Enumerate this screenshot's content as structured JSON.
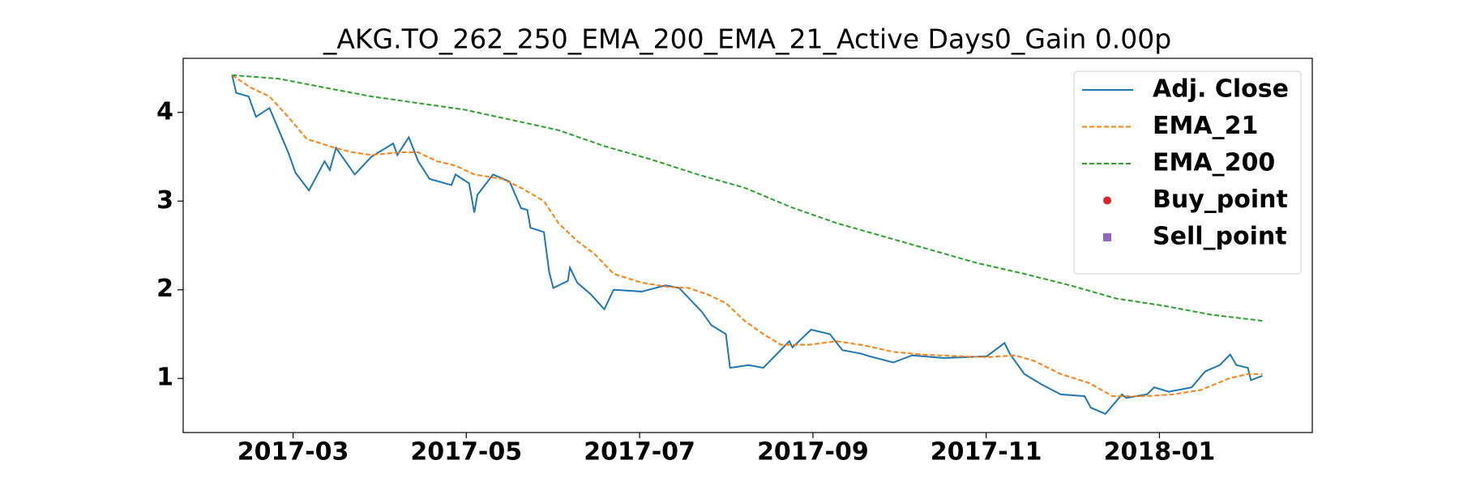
{
  "chart_data": {
    "type": "line",
    "title": "_AKG.TO_262_250_EMA_200_EMA_21_Active Days0_Gain   0.00p",
    "xlim": [
      2017.061,
      2018.147
    ],
    "ylim": [
      0.39,
      4.61
    ],
    "xticks": [
      {
        "value": 2017.1667,
        "label": "2017-03"
      },
      {
        "value": 2017.3333,
        "label": "2017-05"
      },
      {
        "value": 2017.5,
        "label": "2017-07"
      },
      {
        "value": 2017.6667,
        "label": "2017-09"
      },
      {
        "value": 2017.8333,
        "label": "2017-11"
      },
      {
        "value": 2018.0,
        "label": "2018-01"
      }
    ],
    "yticks": [
      1,
      2,
      3,
      4
    ],
    "grid": false,
    "legend": "upper right",
    "series": [
      {
        "name": "Adj. Close",
        "color": "#1f77b4",
        "dash": "solid",
        "x": [
          2017.108,
          2017.112,
          2017.124,
          2017.131,
          2017.144,
          2017.162,
          2017.169,
          2017.182,
          2017.197,
          2017.202,
          2017.208,
          2017.226,
          2017.242,
          2017.263,
          2017.267,
          2017.278,
          2017.287,
          2017.298,
          2017.319,
          2017.323,
          2017.336,
          2017.341,
          2017.344,
          2017.359,
          2017.375,
          2017.386,
          2017.392,
          2017.395,
          2017.408,
          2017.413,
          2017.417,
          2017.431,
          2017.433,
          2017.44,
          2017.453,
          2017.466,
          2017.475,
          2017.502,
          2017.525,
          2017.538,
          2017.56,
          2017.569,
          2017.583,
          2017.587,
          2017.605,
          2017.619,
          2017.644,
          2017.647,
          2017.665,
          2017.683,
          2017.695,
          2017.713,
          2017.721,
          2017.744,
          2017.762,
          2017.793,
          2017.834,
          2017.851,
          2017.856,
          2017.87,
          2017.887,
          2017.905,
          2017.928,
          2017.934,
          2017.948,
          2017.964,
          2017.968,
          2017.988,
          2017.995,
          2018.009,
          2018.031,
          2018.044,
          2018.058,
          2018.068,
          2018.074,
          2018.085,
          2018.088,
          2018.099
        ],
        "values": [
          4.42,
          4.22,
          4.18,
          3.95,
          4.05,
          3.55,
          3.32,
          3.12,
          3.45,
          3.35,
          3.6,
          3.3,
          3.5,
          3.65,
          3.52,
          3.72,
          3.45,
          3.25,
          3.18,
          3.3,
          3.2,
          2.87,
          3.07,
          3.3,
          3.22,
          2.92,
          2.9,
          2.7,
          2.65,
          2.2,
          2.02,
          2.1,
          2.25,
          2.08,
          1.95,
          1.78,
          2.0,
          1.98,
          2.05,
          2.02,
          1.75,
          1.6,
          1.5,
          1.12,
          1.15,
          1.12,
          1.42,
          1.35,
          1.55,
          1.5,
          1.32,
          1.28,
          1.25,
          1.18,
          1.26,
          1.23,
          1.25,
          1.4,
          1.28,
          1.05,
          0.93,
          0.82,
          0.8,
          0.67,
          0.6,
          0.82,
          0.78,
          0.82,
          0.9,
          0.85,
          0.9,
          1.08,
          1.15,
          1.27,
          1.15,
          1.12,
          0.98,
          1.03
        ]
      },
      {
        "name": "EMA_21",
        "color": "#ff7f0e",
        "dash": "dashed",
        "x": [
          2017.108,
          2017.126,
          2017.144,
          2017.162,
          2017.18,
          2017.207,
          2017.224,
          2017.242,
          2017.269,
          2017.287,
          2017.305,
          2017.323,
          2017.341,
          2017.368,
          2017.386,
          2017.408,
          2017.422,
          2017.44,
          2017.457,
          2017.475,
          2017.502,
          2017.529,
          2017.547,
          2017.565,
          2017.583,
          2017.601,
          2017.619,
          2017.636,
          2017.663,
          2017.69,
          2017.717,
          2017.744,
          2017.771,
          2017.807,
          2017.834,
          2017.861,
          2017.879,
          2017.905,
          2017.932,
          2017.955,
          2017.986,
          2018.013,
          2018.04,
          2018.067,
          2018.085,
          2018.099
        ],
        "values": [
          4.42,
          4.28,
          4.18,
          3.95,
          3.7,
          3.6,
          3.55,
          3.52,
          3.55,
          3.55,
          3.45,
          3.4,
          3.3,
          3.25,
          3.15,
          3.0,
          2.75,
          2.55,
          2.4,
          2.18,
          2.08,
          2.03,
          2.02,
          1.95,
          1.85,
          1.65,
          1.5,
          1.38,
          1.38,
          1.42,
          1.37,
          1.3,
          1.27,
          1.25,
          1.24,
          1.26,
          1.2,
          1.05,
          0.95,
          0.8,
          0.8,
          0.82,
          0.87,
          1.0,
          1.05,
          1.05
        ]
      },
      {
        "name": "EMA_200",
        "color": "#2ca02c",
        "dash": "dashed",
        "x": [
          2017.108,
          2017.153,
          2017.197,
          2017.242,
          2017.332,
          2017.422,
          2017.466,
          2017.511,
          2017.556,
          2017.601,
          2017.646,
          2017.69,
          2017.735,
          2017.78,
          2017.825,
          2017.87,
          2017.914,
          2017.959,
          2018.004,
          2018.049,
          2018.099
        ],
        "values": [
          4.42,
          4.38,
          4.28,
          4.18,
          4.03,
          3.8,
          3.62,
          3.47,
          3.3,
          3.15,
          2.93,
          2.75,
          2.6,
          2.45,
          2.3,
          2.18,
          2.05,
          1.9,
          1.82,
          1.72,
          1.65
        ]
      },
      {
        "name": "Buy_point",
        "color": "#d62728",
        "marker": "circle",
        "x": [],
        "values": []
      },
      {
        "name": "Sell_point",
        "color": "#9467bd",
        "marker": "square",
        "x": [],
        "values": []
      }
    ]
  }
}
